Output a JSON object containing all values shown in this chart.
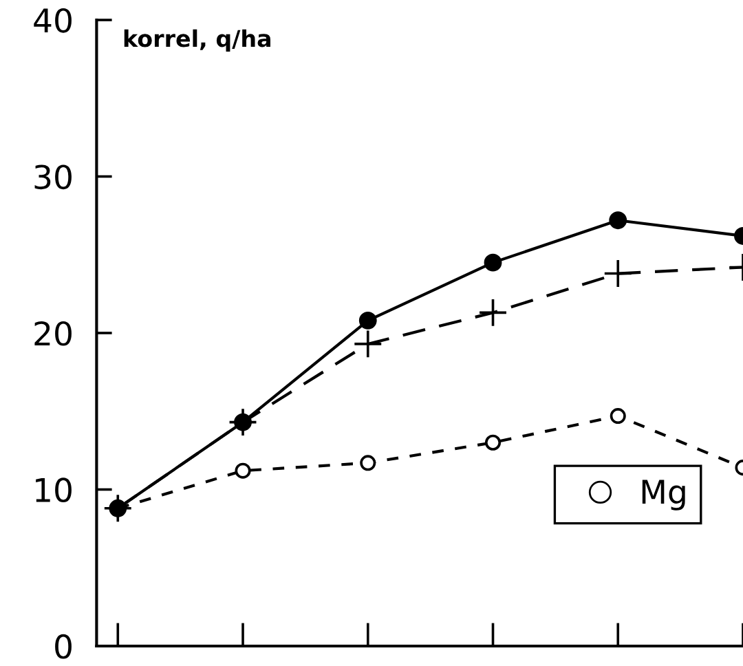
{
  "chart_data": {
    "type": "line",
    "ylabel": "korrel, q/ha",
    "categories": [
      null,
      null,
      null,
      null,
      null,
      null
    ],
    "ylim": [
      0,
      40
    ],
    "yticks": [
      0,
      10,
      20,
      30,
      40
    ],
    "series": [
      {
        "color": "#000000",
        "marker": "circle",
        "line_style": "solid",
        "values": [
          8.8,
          14.3,
          20.8,
          24.5,
          27.2,
          26.2
        ]
      },
      {
        "color": "#000000",
        "marker": "cross",
        "line_style": "dashed",
        "values": [
          8.8,
          14.3,
          19.3,
          21.3,
          23.8,
          24.2
        ]
      },
      {
        "name": "Mg",
        "color": "#000000",
        "marker": "circle",
        "line_style": "dotted",
        "values": [
          8.8,
          11.2,
          11.7,
          13.0,
          14.7,
          11.4
        ]
      }
    ],
    "legend": "lower right",
    "grid": false,
    "tick_labels": "y"
  }
}
